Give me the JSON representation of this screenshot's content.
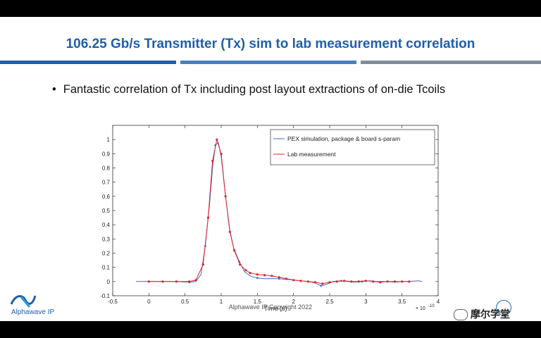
{
  "slide": {
    "title": "106.25 Gb/s Transmitter (Tx) sim to lab measurement correlation",
    "bullet": "Fantastic correlation of Tx including post layout extractions of on-die Tcoils",
    "copyright": "Alphawave IP Copyright 2022",
    "logo_text": "Alphawave IP",
    "watermark": "摩尔学堂",
    "accent_color": "#1f5fa8"
  },
  "chart_data": {
    "type": "line",
    "xlabel": "Time (s)",
    "x_exponent": "× 10",
    "x_exponent_power": "-10",
    "xlim": [
      -0.5,
      4
    ],
    "ylim": [
      -0.1,
      1.1
    ],
    "x_ticks": [
      "-0.5",
      "0",
      "0.5",
      "1",
      "1.5",
      "2",
      "2.5",
      "3",
      "3.5",
      "4"
    ],
    "y_ticks": [
      "-0.1",
      "0",
      "0.1",
      "0.2",
      "0.3",
      "0.4",
      "0.5",
      "0.6",
      "0.7",
      "0.8",
      "0.9",
      "1"
    ],
    "legend_position": "top-right",
    "grid": false,
    "series": [
      {
        "name": "PEX simulation, package & board s-param",
        "color": "#4169c8",
        "x": [
          -0.18,
          0,
          0.19,
          0.38,
          0.56,
          0.65,
          0.72,
          0.78,
          0.84,
          0.88,
          0.92,
          0.96,
          1.0,
          1.06,
          1.12,
          1.17,
          1.25,
          1.32,
          1.4,
          1.5,
          1.6,
          1.7,
          1.8,
          1.9,
          2.0,
          2.1,
          2.2,
          2.3,
          2.38,
          2.45,
          2.55,
          2.66,
          2.75,
          2.85,
          2.95,
          3.05,
          3.15,
          3.3,
          3.4,
          3.5,
          3.6,
          3.72,
          3.78
        ],
        "y": [
          0.0,
          0.0,
          0.0,
          0.0,
          -0.005,
          0.0,
          0.05,
          0.25,
          0.55,
          0.8,
          0.96,
          0.98,
          0.88,
          0.6,
          0.36,
          0.24,
          0.14,
          0.07,
          0.04,
          0.025,
          0.02,
          0.02,
          0.02,
          0.015,
          0.01,
          0.005,
          0.0,
          -0.01,
          -0.03,
          -0.02,
          0.0,
          0.005,
          0.0,
          -0.005,
          0.0,
          0.005,
          0.0,
          0.0,
          -0.005,
          0.0,
          0.0,
          0.005,
          0.0
        ]
      },
      {
        "name": "Lab measurement",
        "color": "#e0242b",
        "x": [
          0,
          0.19,
          0.38,
          0.56,
          0.65,
          0.75,
          0.82,
          0.88,
          0.94,
          1.0,
          1.06,
          1.12,
          1.18,
          1.26,
          1.34,
          1.4,
          1.5,
          1.6,
          1.7,
          1.8,
          1.9,
          2.0,
          2.1,
          2.2,
          2.3,
          2.4,
          2.5,
          2.6,
          2.7,
          2.8,
          2.9,
          3.0,
          3.1,
          3.2,
          3.3,
          3.4,
          3.5,
          3.6
        ],
        "y": [
          0.0,
          0.0,
          0.0,
          0.0,
          0.01,
          0.12,
          0.45,
          0.85,
          1.0,
          0.9,
          0.6,
          0.35,
          0.22,
          0.12,
          0.08,
          0.06,
          0.05,
          0.045,
          0.04,
          0.03,
          0.02,
          0.01,
          0.005,
          0.0,
          -0.005,
          -0.015,
          -0.005,
          0.0,
          0.005,
          0.0,
          0.0,
          0.005,
          0.0,
          -0.005,
          0.0,
          0.0,
          0.0,
          0.0
        ]
      }
    ]
  }
}
